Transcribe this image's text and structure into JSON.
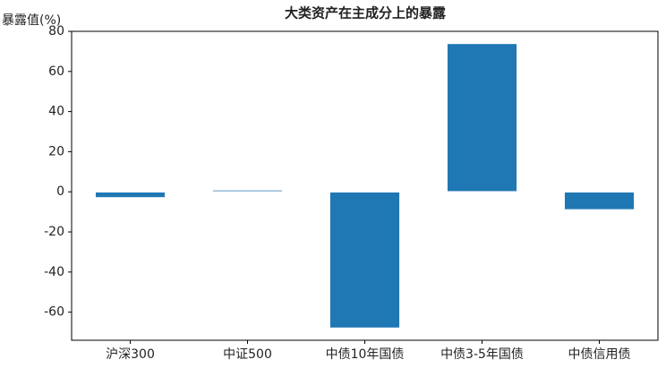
{
  "chart_data": {
    "type": "bar",
    "title": "大类资产在主成分上的暴露",
    "y_label": "暴露值(%)",
    "categories": [
      "沪深300",
      "中证500",
      "中债10年国债",
      "中债3-5年国债",
      "中债信用债"
    ],
    "values": [
      -3,
      1,
      -68,
      74,
      -9
    ],
    "color": "#1f77b4",
    "ylim": [
      -74,
      80
    ],
    "yticks": [
      -60,
      -40,
      -20,
      0,
      20,
      40,
      60,
      80
    ],
    "grid": false
  }
}
